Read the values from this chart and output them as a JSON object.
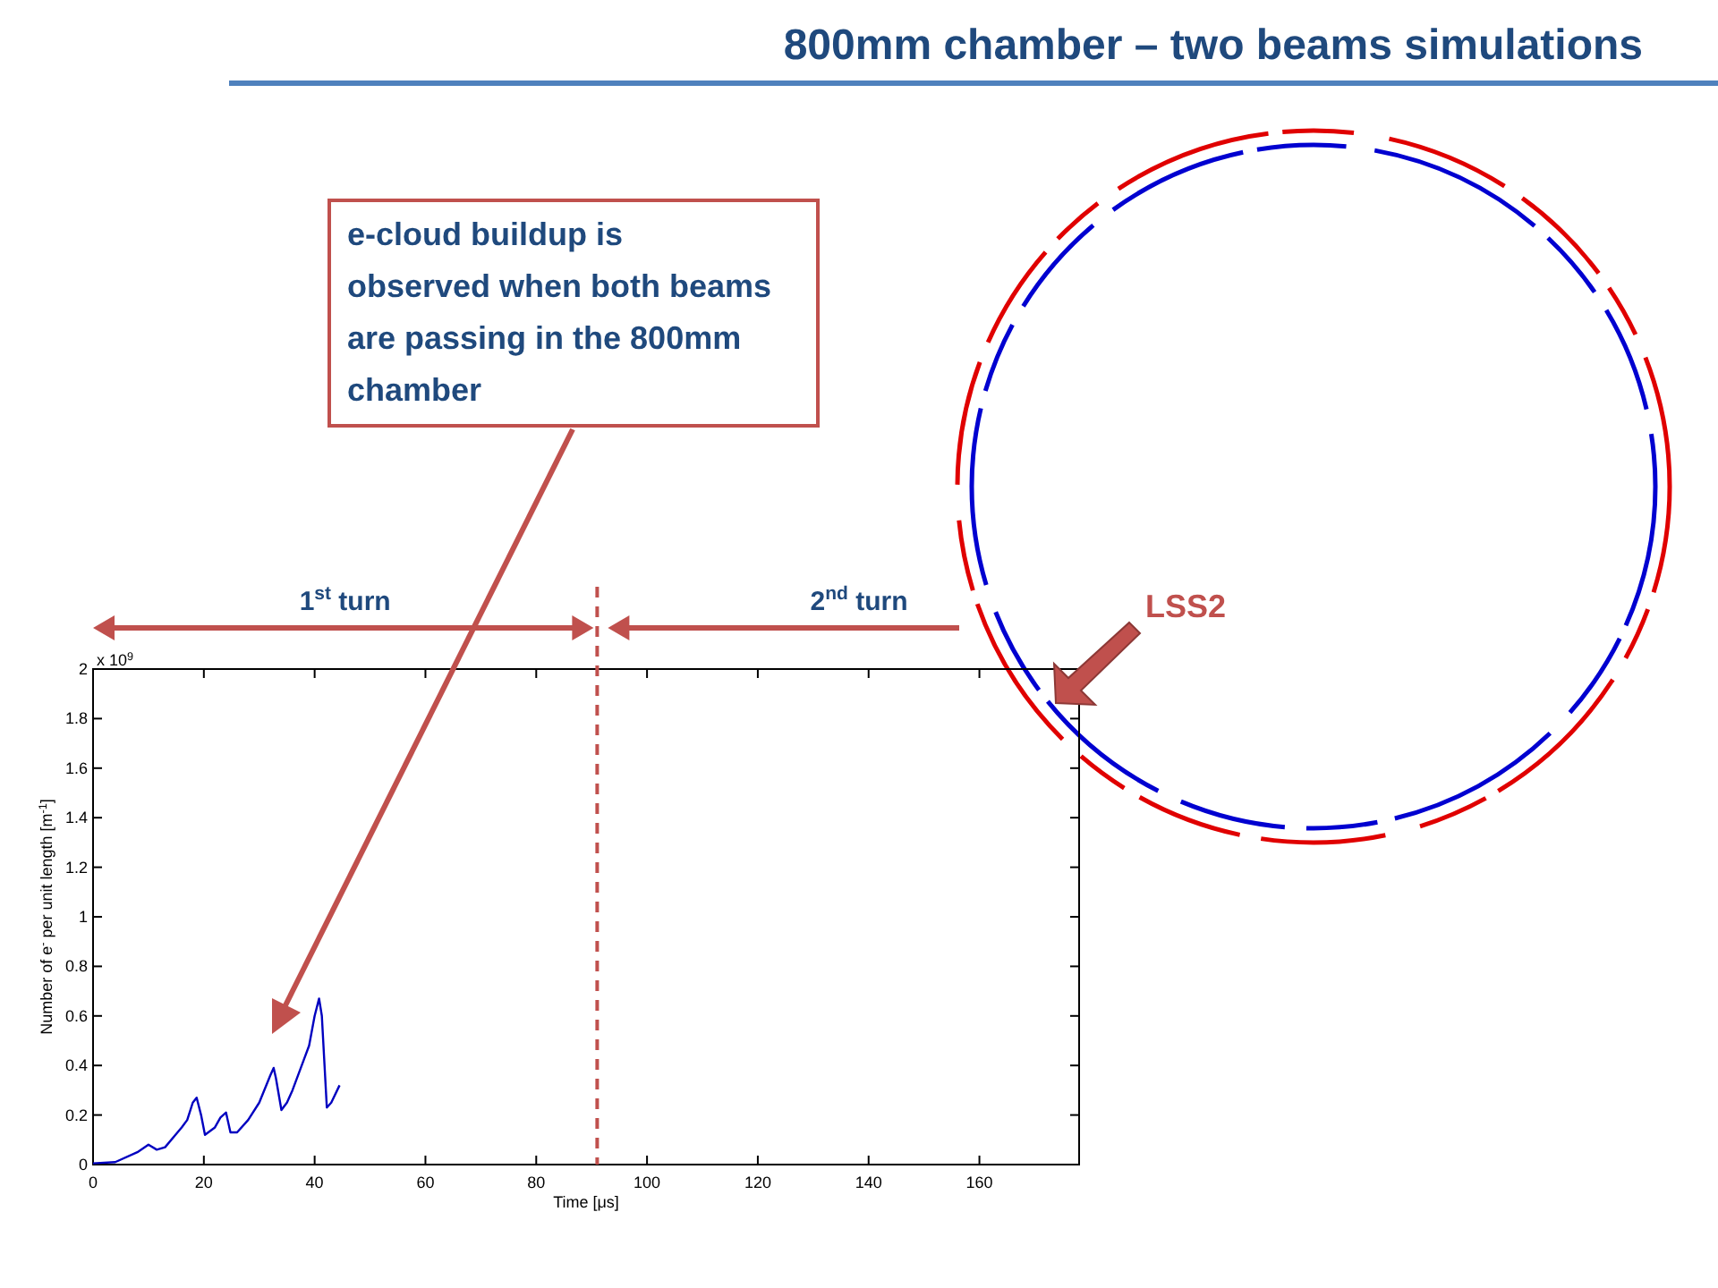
{
  "chart_data": {
    "type": "line",
    "title": "800mm chamber – two beams simulations",
    "xlabel": "Time [μs]",
    "ylabel": "Number of e$^{-}$ per unit length [m$^{-1}$]",
    "x": [
      0,
      4,
      8,
      10,
      11.5,
      13,
      16,
      17,
      18,
      18.7,
      19.5,
      20.2,
      22,
      23,
      24,
      24.8,
      26,
      28,
      30,
      32,
      32.6,
      33,
      34,
      35,
      36,
      38,
      39,
      40,
      40.8,
      41.3,
      42.2,
      43,
      44.5
    ],
    "series": [
      {
        "color": "#0000c0",
        "values": [
          0.005,
          0.01,
          0.05,
          0.08,
          0.06,
          0.07,
          0.15,
          0.18,
          0.25,
          0.27,
          0.2,
          0.12,
          0.15,
          0.19,
          0.21,
          0.13,
          0.13,
          0.18,
          0.25,
          0.36,
          0.39,
          0.35,
          0.22,
          0.25,
          0.3,
          0.42,
          0.48,
          0.6,
          0.67,
          0.6,
          0.23,
          0.25,
          0.32
        ]
      }
    ],
    "xlim": [
      0,
      178
    ],
    "xticks": [
      0,
      20,
      40,
      60,
      80,
      100,
      120,
      140,
      160
    ],
    "ylim": [
      0,
      2
    ],
    "yticks": [
      0,
      0.2,
      0.4,
      0.6,
      0.8,
      1,
      1.2,
      1.4,
      1.6,
      1.8,
      2
    ],
    "grid": false,
    "marker": "none",
    "line_style": "solid",
    "ref_lines": [
      {
        "axis": "x",
        "value": 91,
        "color": "#c0504d",
        "line_style": "dashed"
      }
    ],
    "annotations": [
      "x 10$^{9}$",
      "e-cloud buildup is observed when both beams are passing in the 800mm chamber",
      "1$^{st}$ turn",
      "2$^{nd}$ turn",
      "LSS2"
    ]
  }
}
